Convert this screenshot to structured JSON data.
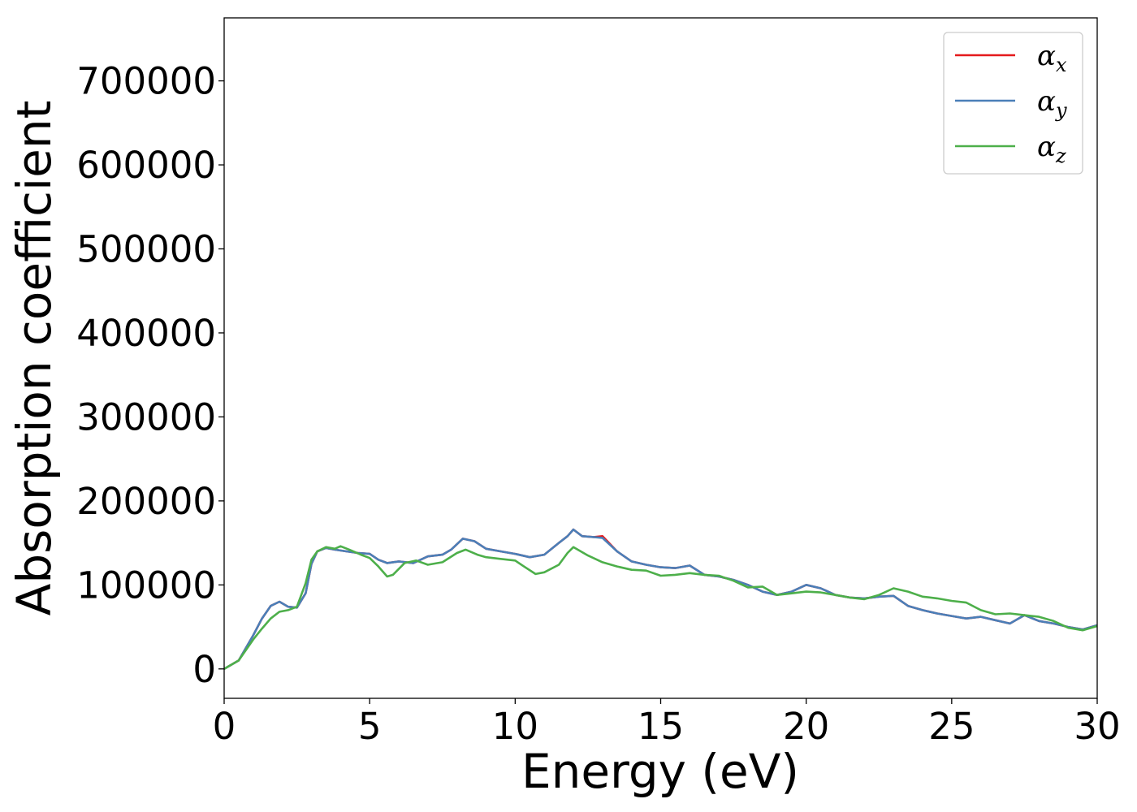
{
  "chart_data": {
    "type": "line",
    "xlabel": "Energy (eV)",
    "ylabel": "Absorption coefficient",
    "xlim": [
      0,
      30
    ],
    "ylim": [
      -35000,
      775000
    ],
    "xticks": [
      0,
      5,
      10,
      15,
      20,
      25,
      30
    ],
    "xtick_labels": [
      "0",
      "5",
      "10",
      "15",
      "20",
      "25",
      "30"
    ],
    "yticks": [
      0,
      100000,
      200000,
      300000,
      400000,
      500000,
      600000,
      700000
    ],
    "ytick_labels": [
      "0",
      "100000",
      "200000",
      "300000",
      "400000",
      "500000",
      "600000",
      "700000"
    ],
    "grid": false,
    "legend_position": "top-right",
    "series": [
      {
        "name": "α_x",
        "label_base": "α",
        "label_sub": "x",
        "color": "#e41a1c",
        "x": [
          0,
          0.5,
          1.0,
          1.3,
          1.6,
          1.9,
          2.2,
          2.5,
          2.8,
          3.0,
          3.2,
          3.5,
          3.8,
          4.2,
          4.6,
          5.0,
          5.3,
          5.6,
          6.0,
          6.5,
          7.0,
          7.5,
          7.8,
          8.2,
          8.6,
          9.0,
          9.5,
          10.0,
          10.5,
          11.0,
          11.5,
          11.8,
          12.0,
          12.3,
          12.7,
          13.0,
          13.5,
          14.0,
          14.5,
          15.0,
          15.5,
          16.0,
          16.5,
          17.0,
          17.5,
          18.0,
          18.5,
          19.0,
          19.5,
          20.0,
          20.5,
          21.0,
          21.5,
          22.0,
          22.5,
          23.0,
          23.5,
          24.0,
          24.5,
          25.0,
          25.5,
          26.0,
          26.5,
          27.0,
          27.5,
          28.0,
          28.5,
          29.0,
          29.5,
          30.0
        ],
        "values": [
          0,
          10000,
          40000,
          60000,
          75000,
          80000,
          74000,
          73000,
          90000,
          125000,
          140000,
          144000,
          142000,
          140000,
          138000,
          137000,
          130000,
          126000,
          128000,
          126000,
          134000,
          136000,
          142000,
          155000,
          152000,
          143000,
          140000,
          137000,
          133000,
          136000,
          150000,
          158000,
          166000,
          158000,
          157000,
          158000,
          140000,
          128000,
          124000,
          121000,
          120000,
          123000,
          112000,
          110000,
          106000,
          100000,
          92000,
          88000,
          92000,
          100000,
          96000,
          88000,
          85000,
          84000,
          86000,
          87000,
          75000,
          70000,
          66000,
          63000,
          60000,
          62000,
          58000,
          54000,
          64000,
          57000,
          54000,
          50000,
          47000,
          52000
        ]
      },
      {
        "name": "α_y",
        "label_base": "α",
        "label_sub": "y",
        "color": "#4a7fb8",
        "x": [
          0,
          0.5,
          1.0,
          1.3,
          1.6,
          1.9,
          2.2,
          2.5,
          2.8,
          3.0,
          3.2,
          3.5,
          3.8,
          4.2,
          4.6,
          5.0,
          5.3,
          5.6,
          6.0,
          6.5,
          7.0,
          7.5,
          7.8,
          8.2,
          8.6,
          9.0,
          9.5,
          10.0,
          10.5,
          11.0,
          11.5,
          11.8,
          12.0,
          12.3,
          12.7,
          13.0,
          13.5,
          14.0,
          14.5,
          15.0,
          15.5,
          16.0,
          16.5,
          17.0,
          17.5,
          18.0,
          18.5,
          19.0,
          19.5,
          20.0,
          20.5,
          21.0,
          21.5,
          22.0,
          22.5,
          23.0,
          23.5,
          24.0,
          24.5,
          25.0,
          25.5,
          26.0,
          26.5,
          27.0,
          27.5,
          28.0,
          28.5,
          29.0,
          29.5,
          30.0
        ],
        "values": [
          0,
          10000,
          40000,
          60000,
          75000,
          80000,
          74000,
          73000,
          90000,
          125000,
          140000,
          144000,
          142000,
          140000,
          138000,
          137000,
          130000,
          126000,
          128000,
          126000,
          134000,
          136000,
          142000,
          155000,
          152000,
          143000,
          140000,
          137000,
          133000,
          136000,
          150000,
          158000,
          166000,
          158000,
          157000,
          156000,
          140000,
          128000,
          124000,
          121000,
          120000,
          123000,
          112000,
          110000,
          106000,
          100000,
          92000,
          88000,
          92000,
          100000,
          96000,
          88000,
          85000,
          84000,
          86000,
          87000,
          75000,
          70000,
          66000,
          63000,
          60000,
          62000,
          58000,
          54000,
          64000,
          57000,
          54000,
          50000,
          47000,
          52000
        ]
      },
      {
        "name": "α_z",
        "label_base": "α",
        "label_sub": "z",
        "color": "#4daf4a",
        "x": [
          0,
          0.5,
          1.0,
          1.3,
          1.6,
          1.9,
          2.2,
          2.5,
          2.8,
          3.0,
          3.2,
          3.5,
          3.8,
          4.0,
          4.3,
          4.7,
          5.0,
          5.3,
          5.6,
          5.8,
          6.2,
          6.6,
          7.0,
          7.5,
          8.0,
          8.3,
          8.7,
          9.0,
          9.5,
          10.0,
          10.3,
          10.7,
          11.0,
          11.5,
          11.8,
          12.0,
          12.5,
          13.0,
          13.5,
          14.0,
          14.5,
          15.0,
          15.5,
          16.0,
          16.5,
          17.0,
          17.5,
          18.0,
          18.5,
          19.0,
          19.5,
          20.0,
          20.5,
          21.0,
          21.5,
          22.0,
          22.5,
          23.0,
          23.5,
          24.0,
          24.5,
          25.0,
          25.5,
          26.0,
          26.5,
          27.0,
          27.5,
          28.0,
          28.5,
          29.0,
          29.5,
          30.0
        ],
        "values": [
          0,
          10000,
          35000,
          48000,
          60000,
          68000,
          70000,
          74000,
          102000,
          130000,
          140000,
          145000,
          143000,
          146000,
          142000,
          136000,
          132000,
          122000,
          110000,
          112000,
          126000,
          129000,
          124000,
          127000,
          138000,
          142000,
          136000,
          133000,
          131000,
          129000,
          122000,
          113000,
          115000,
          124000,
          138000,
          145000,
          135000,
          127000,
          122000,
          118000,
          117000,
          111000,
          112000,
          114000,
          112000,
          111000,
          105000,
          97000,
          98000,
          88000,
          90000,
          92000,
          91000,
          88000,
          85000,
          83000,
          88000,
          96000,
          92000,
          86000,
          84000,
          81000,
          79000,
          70000,
          65000,
          66000,
          64000,
          62000,
          57000,
          49000,
          46000,
          51000
        ]
      }
    ]
  }
}
